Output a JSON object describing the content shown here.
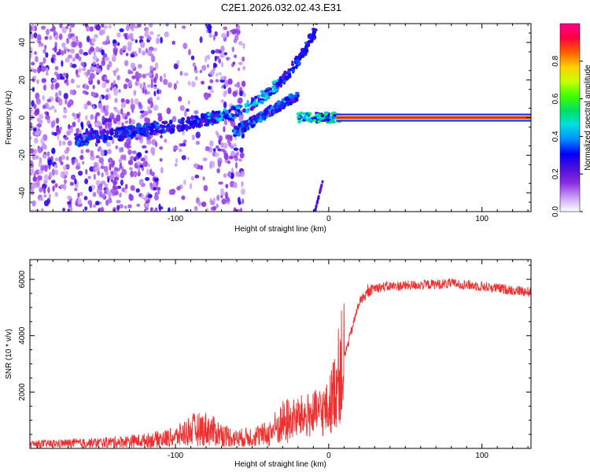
{
  "title": "C2E1.2026.032.02.43.E31",
  "chart_data": [
    {
      "type": "heatmap",
      "title": "C2E1.2026.032.02.43.E31",
      "xlabel": "Height of straight line (km)",
      "ylabel": "Frequency (Hz)",
      "xlim": [
        -195,
        132
      ],
      "ylim": [
        -50,
        50
      ],
      "xticks": [
        -100,
        0,
        100
      ],
      "yticks": [
        -40,
        -20,
        0,
        20,
        40
      ],
      "colorbar": {
        "label": "Normalized spectral amplitude",
        "range": [
          0,
          1
        ],
        "ticks": [
          "0.0",
          "0.2",
          "0.4",
          "0.6",
          "0.8"
        ],
        "colors": [
          "#ffffff",
          "#c89cf6",
          "#8a2be2",
          "#4b0fd9",
          "#0000ff",
          "#0090ff",
          "#00e0e0",
          "#00e060",
          "#40ff00",
          "#c8ff00",
          "#ffd000",
          "#ff6000",
          "#ff0040",
          "#ff0090"
        ]
      },
      "features": [
        {
          "name": "carrier",
          "x": [
            5,
            132
          ],
          "freq": 0,
          "amplitude": 1.0
        },
        {
          "name": "upper branch",
          "x": [
            -165,
            -8
          ],
          "freq_start": -12,
          "freq_end": 48,
          "amplitude": 0.35
        },
        {
          "name": "middle branch",
          "x": [
            -60,
            -20
          ],
          "freq_start": -8,
          "freq_end": 12,
          "amplitude": 0.3
        },
        {
          "name": "lower branch",
          "x": [
            -8,
            -4
          ],
          "freq_start": -50,
          "freq_end": -34,
          "amplitude": 0.2
        }
      ]
    },
    {
      "type": "line",
      "xlabel": "Height of straight line (km)",
      "ylabel": "SNR (10 * v/v)",
      "xlim": [
        -195,
        132
      ],
      "ylim": [
        0,
        6700
      ],
      "xticks": [
        -100,
        0,
        100
      ],
      "yticks": [
        2000,
        4000,
        6000
      ],
      "color": "#f03030",
      "series": [
        {
          "name": "SNR",
          "x": [
            -195,
            -150,
            -120,
            -100,
            -90,
            -80,
            -70,
            -60,
            -40,
            -30,
            -20,
            -10,
            0,
            5,
            10,
            15,
            20,
            25,
            30,
            40,
            60,
            80,
            100,
            115,
            132
          ],
          "y": [
            150,
            200,
            280,
            400,
            650,
            700,
            500,
            350,
            500,
            900,
            1100,
            1200,
            1400,
            2300,
            3200,
            4200,
            5200,
            5500,
            5700,
            5750,
            5800,
            5850,
            5750,
            5650,
            5550
          ]
        }
      ]
    }
  ]
}
